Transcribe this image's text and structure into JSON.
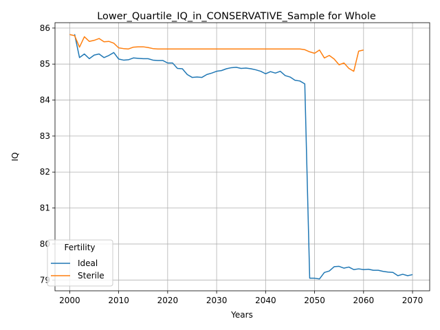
{
  "chart_data": {
    "type": "line",
    "title": "Lower_Quartile_IQ_in_CONSERVATIVE_Sample for Whole",
    "xlabel": "Years",
    "ylabel": "IQ",
    "xlim": [
      1997,
      2073.5
    ],
    "ylim": [
      78.7,
      86.15
    ],
    "xticks": [
      2000,
      2010,
      2020,
      2030,
      2040,
      2050,
      2060,
      2070
    ],
    "yticks": [
      79,
      80,
      81,
      82,
      83,
      84,
      85,
      86
    ],
    "grid": true,
    "legend": {
      "title": "Fertility",
      "placement": "lower-left"
    },
    "series": [
      {
        "name": "Ideal",
        "color": "#1f77b4",
        "x": [
          2001,
          2002,
          2003,
          2004,
          2005,
          2006,
          2007,
          2008,
          2009,
          2010,
          2011,
          2012,
          2013,
          2014,
          2015,
          2016,
          2017,
          2018,
          2019,
          2020,
          2021,
          2022,
          2023,
          2024,
          2025,
          2026,
          2027,
          2028,
          2029,
          2030,
          2031,
          2032,
          2033,
          2034,
          2035,
          2036,
          2037,
          2038,
          2039,
          2040,
          2041,
          2042,
          2043,
          2044,
          2045,
          2046,
          2047,
          2048,
          2049,
          2050,
          2051,
          2052,
          2053,
          2054,
          2055,
          2056,
          2057,
          2058,
          2059,
          2060,
          2061,
          2062,
          2063,
          2064,
          2065,
          2066,
          2067,
          2068,
          2069,
          2070
        ],
        "y": [
          85.83,
          85.18,
          85.28,
          85.15,
          85.25,
          85.28,
          85.18,
          85.24,
          85.32,
          85.14,
          85.11,
          85.12,
          85.17,
          85.16,
          85.15,
          85.15,
          85.11,
          85.1,
          85.1,
          85.03,
          85.03,
          84.88,
          84.87,
          84.71,
          84.63,
          84.64,
          84.63,
          84.71,
          84.75,
          84.8,
          84.82,
          84.87,
          84.9,
          84.91,
          84.88,
          84.89,
          84.87,
          84.84,
          84.8,
          84.73,
          84.79,
          84.75,
          84.8,
          84.68,
          84.64,
          84.55,
          84.53,
          84.45,
          79.05,
          79.05,
          79.03,
          79.21,
          79.25,
          79.37,
          79.38,
          79.33,
          79.36,
          79.29,
          79.31,
          79.29,
          79.3,
          79.27,
          79.27,
          79.24,
          79.22,
          79.21,
          79.12,
          79.16,
          79.12,
          79.15
        ]
      },
      {
        "name": "Sterile",
        "color": "#ff7f0e",
        "x": [
          2000,
          2001,
          2002,
          2003,
          2004,
          2005,
          2006,
          2007,
          2008,
          2009,
          2010,
          2011,
          2012,
          2013,
          2014,
          2015,
          2016,
          2017,
          2018,
          2019,
          2020,
          2021,
          2022,
          2023,
          2024,
          2025,
          2026,
          2027,
          2028,
          2029,
          2030,
          2031,
          2032,
          2033,
          2034,
          2035,
          2036,
          2037,
          2038,
          2039,
          2040,
          2041,
          2042,
          2043,
          2044,
          2045,
          2046,
          2047,
          2048,
          2049,
          2050,
          2051,
          2052,
          2053,
          2054,
          2055,
          2056,
          2057,
          2058,
          2059,
          2060
        ],
        "y": [
          85.82,
          85.79,
          85.47,
          85.76,
          85.63,
          85.66,
          85.71,
          85.62,
          85.63,
          85.58,
          85.45,
          85.43,
          85.42,
          85.47,
          85.48,
          85.48,
          85.46,
          85.43,
          85.42,
          85.42,
          85.42,
          85.42,
          85.42,
          85.42,
          85.42,
          85.42,
          85.42,
          85.42,
          85.42,
          85.42,
          85.42,
          85.42,
          85.42,
          85.42,
          85.42,
          85.42,
          85.42,
          85.42,
          85.42,
          85.42,
          85.42,
          85.42,
          85.42,
          85.42,
          85.42,
          85.42,
          85.42,
          85.42,
          85.4,
          85.34,
          85.3,
          85.39,
          85.17,
          85.24,
          85.14,
          84.98,
          85.03,
          84.88,
          84.8,
          85.36,
          85.39
        ]
      }
    ]
  }
}
